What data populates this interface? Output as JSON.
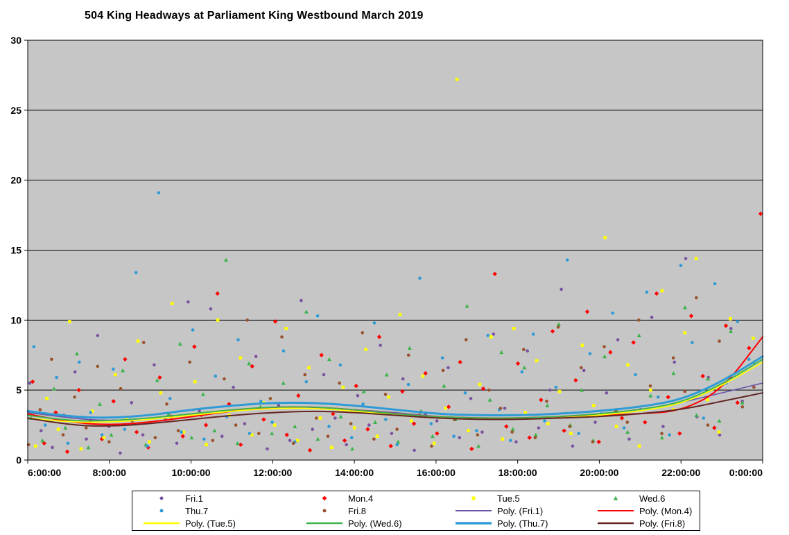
{
  "title": "504 King Headways at Parliament King Westbound March 2019",
  "chart_data": {
    "type": "scatter",
    "title": "504 King Headways at Parliament King Westbound March 2019",
    "plot_bg": "#C6C6C6",
    "grid": true,
    "x_axis": {
      "range_hours": [
        6,
        24
      ],
      "tick_hours": [
        6,
        8,
        10,
        12,
        14,
        16,
        18,
        20,
        22,
        24
      ],
      "labels": [
        "6:00:00",
        "8:00:00",
        "10:00:00",
        "12:00:00",
        "14:00:00",
        "16:00:00",
        "18:00:00",
        "20:00:00",
        "22:00:00",
        "0:00:00"
      ]
    },
    "y_axis": {
      "range": [
        0,
        30
      ],
      "ticks": [
        0,
        5,
        10,
        15,
        20,
        25,
        30
      ]
    },
    "series": [
      {
        "name": "Fri.1",
        "marker": "circle",
        "color": "#7B52A0",
        "x_start": 6.05,
        "x_step": 0.277,
        "y": [
          5.5,
          2.1,
          0.9,
          3.2,
          6.3,
          1.5,
          8.9,
          2.4,
          0.5,
          4.1,
          1.8,
          6.8,
          2.9,
          1.2,
          11.3,
          3.5,
          10.8,
          1.7,
          5.2,
          2.6,
          7.4,
          0.8,
          3.9,
          1.4,
          11.4,
          2.2,
          6.1,
          3.0,
          1.1,
          4.6,
          2.5,
          8.2,
          1.9,
          5.8,
          0.7,
          3.3,
          2.8,
          6.6,
          1.6,
          4.4,
          2.0,
          9.0,
          3.7,
          1.3,
          7.8,
          2.3,
          5.0,
          12.2,
          1.0,
          6.4,
          2.7,
          4.8,
          8.6,
          1.5,
          3.6,
          10.2,
          2.4,
          7.0,
          14.4,
          3.1,
          5.9,
          1.8,
          9.4,
          4.2
        ]
      },
      {
        "name": "Mon.4",
        "marker": "diamond",
        "color": "#FF0000",
        "x_start": 6.12,
        "x_step": 0.283,
        "y": [
          5.6,
          1.2,
          3.4,
          0.6,
          5.0,
          2.8,
          1.5,
          4.2,
          7.2,
          2.0,
          0.9,
          5.9,
          3.1,
          1.7,
          8.1,
          2.5,
          11.9,
          4.0,
          1.1,
          6.7,
          2.9,
          9.9,
          1.8,
          4.6,
          0.7,
          7.5,
          3.3,
          1.4,
          5.3,
          2.2,
          8.8,
          1.0,
          4.9,
          2.6,
          6.2,
          1.9,
          3.8,
          7.0,
          0.8,
          5.1,
          13.3,
          2.4,
          6.9,
          1.6,
          4.3,
          9.2,
          2.1,
          5.7,
          10.6,
          1.3,
          7.7,
          3.0,
          8.4,
          2.7,
          11.9,
          4.5,
          1.9,
          10.3,
          6.0,
          2.3,
          9.6,
          4.1,
          8.0,
          17.6
        ]
      },
      {
        "name": "Tue.5",
        "marker": "square",
        "color": "#FFFF00",
        "x_start": 6.19,
        "x_step": 0.279,
        "y": [
          1.0,
          4.4,
          2.2,
          9.9,
          0.8,
          3.5,
          1.6,
          6.1,
          2.9,
          8.5,
          1.3,
          4.8,
          11.2,
          2.0,
          5.6,
          1.1,
          10.0,
          3.2,
          7.3,
          1.8,
          4.1,
          2.5,
          9.4,
          1.4,
          6.6,
          3.0,
          0.9,
          5.2,
          2.3,
          7.9,
          1.7,
          4.5,
          10.4,
          2.8,
          6.0,
          1.2,
          3.7,
          27.2,
          2.1,
          5.4,
          8.8,
          1.5,
          9.4,
          3.4,
          7.1,
          2.6,
          4.9,
          1.9,
          8.2,
          3.9,
          15.9,
          2.4,
          6.8,
          1.0,
          5.0,
          12.1,
          3.6,
          9.1,
          14.4,
          4.3,
          2.0,
          10.1,
          6.3,
          8.7
        ]
      },
      {
        "name": "Wed.6",
        "marker": "triangle",
        "color": "#3CB44B",
        "x_start": 6.08,
        "x_step": 0.281,
        "y": [
          3.0,
          1.4,
          5.1,
          2.3,
          7.6,
          0.9,
          4.0,
          1.8,
          6.4,
          2.6,
          1.1,
          5.7,
          3.3,
          8.3,
          1.6,
          4.7,
          2.1,
          14.3,
          1.2,
          6.9,
          3.8,
          1.9,
          5.5,
          2.4,
          10.6,
          1.5,
          7.2,
          3.1,
          0.8,
          4.9,
          2.7,
          6.1,
          1.3,
          8.0,
          3.5,
          1.7,
          5.3,
          2.9,
          11.0,
          1.0,
          4.3,
          7.7,
          2.2,
          6.6,
          1.8,
          3.9,
          9.7,
          2.5,
          5.0,
          1.4,
          7.4,
          3.6,
          2.0,
          8.9,
          4.6,
          1.6,
          6.2,
          10.9,
          3.2,
          5.8,
          2.8,
          9.2,
          4.1,
          7.0
        ]
      },
      {
        "name": "Thu.7",
        "marker": "circle",
        "color": "#2E9BD6",
        "x_start": 6.15,
        "x_step": 0.278,
        "y": [
          8.1,
          2.5,
          5.9,
          1.2,
          7.0,
          3.4,
          1.8,
          6.5,
          2.2,
          13.4,
          1.0,
          19.1,
          4.4,
          2.0,
          9.3,
          1.5,
          6.0,
          3.1,
          8.6,
          1.9,
          4.2,
          2.7,
          7.8,
          1.3,
          5.6,
          10.3,
          2.4,
          6.8,
          1.6,
          4.0,
          9.8,
          2.9,
          1.1,
          5.4,
          13.0,
          2.6,
          7.3,
          1.7,
          4.8,
          2.1,
          8.9,
          3.6,
          1.4,
          6.3,
          9.0,
          2.8,
          5.2,
          14.3,
          1.9,
          7.6,
          3.3,
          10.5,
          2.3,
          6.1,
          12.0,
          4.5,
          1.8,
          13.9,
          8.4,
          3.0,
          12.6,
          5.5,
          9.9,
          7.2
        ]
      },
      {
        "name": "Fri.8",
        "marker": "circle",
        "color": "#99522B",
        "x_start": 6.02,
        "x_step": 0.282,
        "y": [
          1.1,
          3.6,
          7.2,
          1.8,
          4.5,
          2.3,
          6.7,
          1.3,
          5.1,
          2.8,
          8.4,
          1.6,
          4.0,
          2.1,
          7.0,
          3.2,
          1.4,
          5.8,
          2.5,
          10.0,
          1.9,
          4.4,
          8.8,
          1.2,
          6.1,
          3.0,
          1.7,
          5.5,
          2.6,
          9.1,
          1.5,
          4.7,
          2.2,
          7.5,
          3.4,
          1.0,
          6.4,
          2.9,
          8.6,
          1.8,
          5.0,
          3.7,
          2.0,
          7.9,
          1.6,
          4.2,
          9.5,
          2.4,
          6.6,
          1.3,
          8.1,
          3.5,
          2.7,
          10.0,
          5.3,
          1.9,
          7.3,
          4.9,
          11.6,
          2.5,
          8.5,
          6.0,
          3.8,
          5.2
        ]
      }
    ],
    "trend_lines": [
      {
        "name": "Poly. (Fri.1)",
        "color": "#6A52A8",
        "width": 1.6,
        "x_start": 6,
        "x_step": 1,
        "y": [
          3.4,
          3.0,
          2.8,
          3.0,
          3.3,
          3.6,
          3.8,
          3.8,
          3.6,
          3.4,
          3.1,
          3.0,
          3.0,
          3.1,
          3.3,
          3.6,
          4.1,
          4.8,
          5.5
        ]
      },
      {
        "name": "Poly. (Mon.4)",
        "color": "#FF0000",
        "width": 2,
        "x_start": 6,
        "x_step": 1,
        "y": [
          3.3,
          2.7,
          2.5,
          2.7,
          3.1,
          3.5,
          3.8,
          3.8,
          3.6,
          3.3,
          3.1,
          3.0,
          3.0,
          3.1,
          3.2,
          3.3,
          3.5,
          5.0,
          8.8
        ]
      },
      {
        "name": "Poly. (Tue.5)",
        "color": "#FFFF00",
        "width": 1.8,
        "x_start": 6,
        "x_step": 1,
        "y": [
          3.0,
          2.7,
          2.7,
          2.9,
          3.2,
          3.5,
          3.7,
          3.7,
          3.5,
          3.2,
          3.0,
          2.9,
          2.9,
          3.0,
          3.2,
          3.5,
          4.0,
          5.3,
          7.0
        ]
      },
      {
        "name": "Poly. (Wed.6)",
        "color": "#3CB44B",
        "width": 1.8,
        "x_start": 6,
        "x_step": 1,
        "y": [
          3.2,
          2.8,
          2.8,
          3.0,
          3.3,
          3.6,
          3.8,
          3.8,
          3.6,
          3.3,
          3.1,
          3.0,
          3.0,
          3.1,
          3.3,
          3.6,
          4.1,
          5.4,
          7.2
        ]
      },
      {
        "name": "Poly. (Thu.7)",
        "color": "#2E9BD6",
        "width": 3,
        "x_start": 6,
        "x_step": 1,
        "y": [
          3.5,
          3.1,
          3.0,
          3.2,
          3.6,
          3.9,
          4.1,
          4.1,
          3.9,
          3.6,
          3.3,
          3.2,
          3.2,
          3.3,
          3.5,
          3.8,
          4.3,
          5.6,
          7.4
        ]
      },
      {
        "name": "Poly. (Fri.8)",
        "color": "#632523",
        "width": 2,
        "x_start": 6,
        "x_step": 1,
        "y": [
          3.0,
          2.5,
          2.4,
          2.6,
          2.9,
          3.2,
          3.4,
          3.5,
          3.4,
          3.2,
          3.0,
          2.9,
          2.9,
          3.0,
          3.1,
          3.3,
          3.6,
          4.2,
          4.8
        ]
      }
    ]
  },
  "legend": {
    "items": [
      {
        "label": "Fri.1",
        "type": "circle",
        "color": "#7B52A0",
        "weight": 1
      },
      {
        "label": "Mon.4",
        "type": "diamond",
        "color": "#FF0000",
        "weight": 1
      },
      {
        "label": "Tue.5",
        "type": "square",
        "color": "#FFFF00",
        "weight": 1
      },
      {
        "label": "Wed.6",
        "type": "triangle",
        "color": "#3CB44B",
        "weight": 1
      },
      {
        "label": "Thu.7",
        "type": "circle",
        "color": "#2E9BD6",
        "weight": 1
      },
      {
        "label": "Fri.8",
        "type": "circle",
        "color": "#99522B",
        "weight": 1
      },
      {
        "label": "Poly. (Fri.1)",
        "type": "line",
        "color": "#6A52A8",
        "weight": 2
      },
      {
        "label": "Poly. (Mon.4)",
        "type": "line",
        "color": "#FF0000",
        "weight": 2
      },
      {
        "label": "Poly. (Tue.5)",
        "type": "line",
        "color": "#FFFF00",
        "weight": 2.5
      },
      {
        "label": "Poly. (Wed.6)",
        "type": "line",
        "color": "#3CB44B",
        "weight": 2.5
      },
      {
        "label": "Poly. (Thu.7)",
        "type": "line",
        "color": "#2E9BD6",
        "weight": 3.5
      },
      {
        "label": "Poly. (Fri.8)",
        "type": "line",
        "color": "#632523",
        "weight": 2.5
      }
    ]
  }
}
